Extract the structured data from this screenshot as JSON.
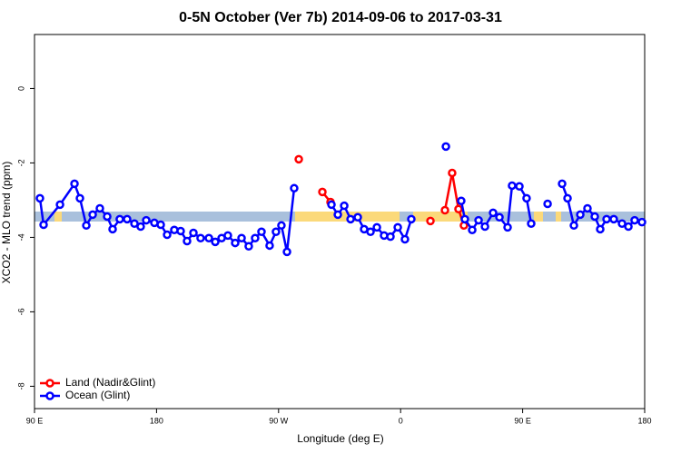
{
  "chart_data": {
    "type": "line",
    "title": "0-5N October (Ver 7b)   2014-09-06 to 2017-03-31",
    "x_label": "Longitude (deg E)",
    "y_label": "XCO2 - MLO trend (ppm)",
    "xlim": [
      90,
      540
    ],
    "ylim": [
      -8.6,
      1.45
    ],
    "xticks": [
      {
        "value": 90,
        "label": "90 E"
      },
      {
        "value": 180,
        "label": "180"
      },
      {
        "value": 270,
        "label": "90 W"
      },
      {
        "value": 360,
        "label": "0"
      },
      {
        "value": 450,
        "label": "90 E"
      },
      {
        "value": 540,
        "label": "180"
      }
    ],
    "yticks": [
      0,
      -2,
      -4,
      -6,
      -8
    ],
    "legend": "bottom-left",
    "series": [
      {
        "name": "Land (Nadir&Glint)",
        "color": "#ff0000",
        "x": [
          284.9,
          null,
          302.3,
          308.3,
          null,
          382.0,
          null,
          392.7,
          398.0,
          402.7,
          406.7
        ],
        "values": [
          -1.9,
          null,
          -2.78,
          -3.05,
          null,
          -3.56,
          null,
          -3.27,
          -2.27,
          -3.24,
          -3.68
        ]
      },
      {
        "name": "Ocean (Glint)",
        "color": "#0000ff",
        "x": [
          94,
          96.7,
          108.8,
          119.5,
          123.5,
          128.2,
          132.9,
          138.2,
          143.6,
          147.6,
          152.9,
          158.3,
          163.7,
          168.3,
          172.4,
          178.4,
          183.1,
          187.8,
          193.1,
          197.8,
          202.5,
          207.2,
          212.5,
          218.6,
          223.3,
          228.0,
          232.6,
          238.0,
          242.7,
          248.0,
          252.7,
          257.4,
          263.4,
          268.1,
          272.1,
          276.2,
          281.5,
          null,
          309.0,
          313.7,
          318.4,
          323.1,
          328.4,
          333.1,
          337.8,
          342.5,
          347.8,
          352.5,
          357.9,
          363.2,
          367.9,
          null,
          393.4,
          null,
          404.7,
          407.4,
          412.8,
          417.5,
          422.2,
          428.2,
          432.9,
          438.9,
          442.2,
          447.6,
          452.9,
          456.3,
          null,
          468.4,
          null,
          479.1,
          483.1,
          487.8,
          492.5,
          497.8,
          503.2,
          507.2,
          511.9,
          517.2,
          523.3,
          528.0,
          532.6,
          538.0
        ],
        "values": [
          -2.95,
          -3.66,
          -3.12,
          -2.56,
          -2.95,
          -3.68,
          -3.39,
          -3.22,
          -3.44,
          -3.78,
          -3.51,
          -3.51,
          -3.63,
          -3.71,
          -3.54,
          -3.61,
          -3.66,
          -3.93,
          -3.8,
          -3.83,
          -4.1,
          -3.88,
          -4.02,
          -4.02,
          -4.12,
          -4.02,
          -3.95,
          -4.15,
          -4.02,
          -4.24,
          -4.02,
          -3.85,
          -4.22,
          -3.85,
          -3.68,
          -4.39,
          -2.68,
          null,
          -3.12,
          -3.39,
          -3.15,
          -3.51,
          -3.46,
          -3.78,
          -3.85,
          -3.73,
          -3.95,
          -3.98,
          -3.73,
          -4.05,
          -3.51,
          null,
          -1.56,
          null,
          -3.02,
          -3.51,
          -3.8,
          -3.54,
          -3.71,
          -3.34,
          -3.46,
          -3.73,
          -2.61,
          -2.63,
          -2.95,
          -3.63,
          null,
          -3.1,
          null,
          -2.56,
          -2.95,
          -3.68,
          -3.39,
          -3.22,
          -3.44,
          -3.78,
          -3.51,
          -3.51,
          -3.63,
          -3.71,
          -3.54,
          -3.59
        ]
      }
    ]
  }
}
